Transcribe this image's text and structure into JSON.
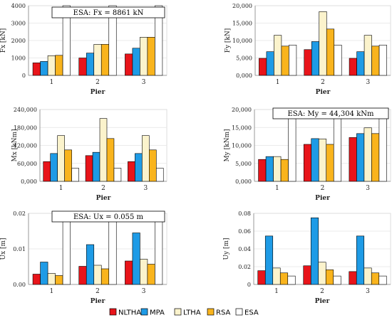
{
  "legend": [
    {
      "name": "NLTHA",
      "color": "#e8141a"
    },
    {
      "name": "MPA",
      "color": "#1e9be6"
    },
    {
      "name": "LTHA",
      "color": "#fbf3cc"
    },
    {
      "name": "RSA",
      "color": "#f9b41d"
    },
    {
      "name": "ESA",
      "color": "#ffffff"
    }
  ],
  "chart_data": [
    {
      "type": "bar",
      "ylabel": "Fx [kN]",
      "xlabel": "Pier",
      "categories": [
        "1",
        "2",
        "3"
      ],
      "yticks": [
        "0",
        "1000",
        "2000",
        "3000",
        "4000"
      ],
      "ylim": [
        0,
        4000
      ],
      "series": [
        {
          "name": "NLTHA",
          "values": [
            720,
            1000,
            1230
          ]
        },
        {
          "name": "MPA",
          "values": [
            800,
            1280,
            1560
          ]
        },
        {
          "name": "LTHA",
          "values": [
            1130,
            1780,
            2190
          ]
        },
        {
          "name": "RSA",
          "values": [
            1150,
            1780,
            2190
          ]
        },
        {
          "name": "ESA",
          "values": [
            8861,
            8861,
            8861
          ]
        }
      ],
      "annotation": "ESA:  Fx = 8861 kN"
    },
    {
      "type": "bar",
      "ylabel": "Fy [kN]",
      "xlabel": "Pier",
      "categories": [
        "1",
        "2",
        "3"
      ],
      "yticks": [
        "0,000",
        "5,000",
        "10,000",
        "15,000",
        "20,000"
      ],
      "ylim": [
        0,
        20000
      ],
      "series": [
        {
          "name": "NLTHA",
          "values": [
            4900,
            7400,
            4900
          ]
        },
        {
          "name": "MPA",
          "values": [
            6800,
            9700,
            6800
          ]
        },
        {
          "name": "LTHA",
          "values": [
            11500,
            18300,
            11500
          ]
        },
        {
          "name": "RSA",
          "values": [
            8400,
            13300,
            8400
          ]
        },
        {
          "name": "ESA",
          "values": [
            8700,
            8700,
            8700
          ]
        }
      ]
    },
    {
      "type": "bar",
      "ylabel": "Mx [kNm]",
      "xlabel": "Pier",
      "categories": [
        "1",
        "2",
        "3"
      ],
      "yticks": [
        "0,000",
        "60,000",
        "120,000",
        "180,000",
        "240,000"
      ],
      "ylim": [
        0,
        240000
      ],
      "series": [
        {
          "name": "NLTHA",
          "values": [
            66000,
            86000,
            66000
          ]
        },
        {
          "name": "MPA",
          "values": [
            93000,
            97000,
            93000
          ]
        },
        {
          "name": "LTHA",
          "values": [
            153000,
            210000,
            153000
          ]
        },
        {
          "name": "RSA",
          "values": [
            105000,
            143000,
            105000
          ]
        },
        {
          "name": "ESA",
          "values": [
            44000,
            44000,
            44000
          ]
        }
      ]
    },
    {
      "type": "bar",
      "ylabel": "My [kNm]",
      "xlabel": "Pier",
      "categories": [
        "1",
        "2",
        "3"
      ],
      "yticks": [
        "0,000",
        "5,000",
        "10,000",
        "15,000",
        "20,000"
      ],
      "ylim": [
        0,
        20000
      ],
      "series": [
        {
          "name": "NLTHA",
          "values": [
            6100,
            10300,
            12200
          ]
        },
        {
          "name": "MPA",
          "values": [
            6900,
            11900,
            13300
          ]
        },
        {
          "name": "LTHA",
          "values": [
            6900,
            11800,
            14900
          ]
        },
        {
          "name": "RSA",
          "values": [
            6100,
            10300,
            13300
          ]
        },
        {
          "name": "ESA",
          "values": [
            44304,
            44304,
            44304
          ]
        }
      ],
      "annotation": "ESA:  My = 44,304 kNm"
    },
    {
      "type": "bar",
      "ylabel": "Ux [m]",
      "xlabel": "Pier",
      "categories": [
        "1",
        "2",
        "3"
      ],
      "yticks": [
        "0.00",
        "0.01",
        "0.02"
      ],
      "ylim": [
        0,
        0.02
      ],
      "series": [
        {
          "name": "NLTHA",
          "values": [
            0.0029,
            0.0051,
            0.0066
          ]
        },
        {
          "name": "MPA",
          "values": [
            0.0063,
            0.0112,
            0.0145
          ]
        },
        {
          "name": "LTHA",
          "values": [
            0.0031,
            0.0054,
            0.0071
          ]
        },
        {
          "name": "RSA",
          "values": [
            0.0025,
            0.0044,
            0.0057
          ]
        },
        {
          "name": "ESA",
          "values": [
            0.055,
            0.055,
            0.055
          ]
        }
      ],
      "annotation": "ESA:  Ux = 0.055 m"
    },
    {
      "type": "bar",
      "ylabel": "Uy [m]",
      "xlabel": "Pier",
      "categories": [
        "1",
        "2",
        "3"
      ],
      "yticks": [
        "0",
        "0.02",
        "0.04",
        "0.06",
        "0.08"
      ],
      "ylim": [
        0,
        0.08
      ],
      "series": [
        {
          "name": "NLTHA",
          "values": [
            0.0155,
            0.021,
            0.0145
          ]
        },
        {
          "name": "MPA",
          "values": [
            0.0545,
            0.075,
            0.0545
          ]
        },
        {
          "name": "LTHA",
          "values": [
            0.0185,
            0.025,
            0.0185
          ]
        },
        {
          "name": "RSA",
          "values": [
            0.013,
            0.0165,
            0.013
          ]
        },
        {
          "name": "ESA",
          "values": [
            0.0095,
            0.0095,
            0.0095
          ]
        }
      ]
    }
  ]
}
